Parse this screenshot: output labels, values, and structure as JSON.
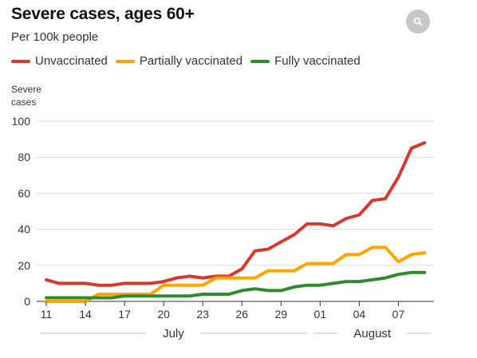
{
  "title": "Severe cases, ages 60+",
  "subtitle": "Per 100k people",
  "zoom_icon": "magnifier-icon",
  "legend": [
    {
      "label": "Unvaccinated",
      "color": "#d9392c"
    },
    {
      "label": "Partially vaccinated",
      "color": "#ffa500"
    },
    {
      "label": "Fully vaccinated",
      "color": "#2e8b2e"
    }
  ],
  "chart_data": {
    "type": "line",
    "ylabel_line1": "Severe",
    "ylabel_line2": "cases",
    "ylim": [
      0,
      100
    ],
    "y_ticks": [
      "100",
      "80",
      "60",
      "40",
      "20",
      "0"
    ],
    "y_tick_values": [
      100,
      80,
      60,
      40,
      20,
      0
    ],
    "x_ticks": [
      "11",
      "14",
      "17",
      "20",
      "23",
      "26",
      "29",
      "01",
      "04",
      "07"
    ],
    "x_tick_index": [
      0,
      3,
      6,
      9,
      12,
      15,
      18,
      21,
      24,
      27
    ],
    "months": [
      {
        "label": "July",
        "start_index": -0.5,
        "end_index": 20
      },
      {
        "label": "August",
        "start_index": 20.5,
        "end_index": 29.5
      }
    ],
    "grid": true,
    "legend_position": "top",
    "series": [
      {
        "name": "Unvaccinated",
        "color": "#d9392c",
        "values": [
          12,
          10,
          10,
          10,
          9,
          9,
          10,
          10,
          10,
          11,
          13,
          14,
          13,
          14,
          14,
          18,
          28,
          29,
          33,
          37,
          43,
          43,
          42,
          46,
          48,
          56,
          57,
          69,
          85,
          88
        ]
      },
      {
        "name": "Partially vaccinated",
        "color": "#ffa500",
        "values": [
          0,
          0,
          0,
          0,
          4,
          4,
          4,
          4,
          4,
          9,
          9,
          9,
          9,
          13,
          13,
          13,
          13,
          17,
          17,
          17,
          21,
          21,
          21,
          26,
          26,
          30,
          30,
          22,
          26,
          27
        ]
      },
      {
        "name": "Fully vaccinated",
        "color": "#2e8b2e",
        "values": [
          2,
          2,
          2,
          2,
          2,
          2,
          3,
          3,
          3,
          3,
          3,
          3,
          4,
          4,
          4,
          6,
          7,
          6,
          6,
          8,
          9,
          9,
          10,
          11,
          11,
          12,
          13,
          15,
          16,
          16
        ]
      }
    ]
  }
}
